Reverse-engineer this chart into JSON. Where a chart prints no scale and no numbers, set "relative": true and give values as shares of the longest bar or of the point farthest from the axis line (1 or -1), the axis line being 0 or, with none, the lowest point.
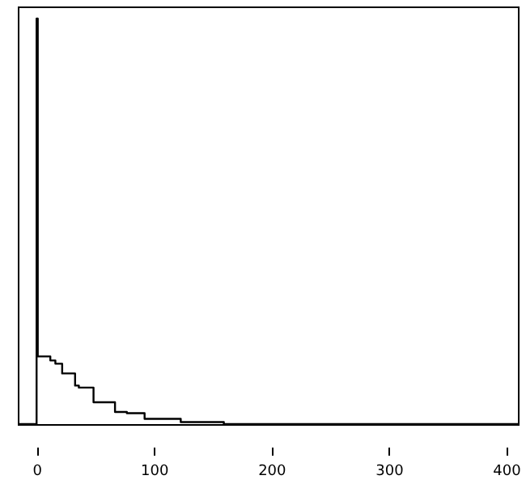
{
  "chart_data": {
    "type": "step",
    "relative": true,
    "color": "#000000",
    "x": [
      -16,
      0,
      1,
      11.7,
      16,
      21.8,
      32.8,
      36,
      48.5,
      66.8,
      76.9,
      92,
      122.8,
      159.5,
      410
    ],
    "values": [
      0,
      1,
      0.167,
      0.157,
      0.149,
      0.125,
      0.095,
      0.09,
      0.054,
      0.03,
      0.027,
      0.013,
      0.005,
      0,
      0
    ],
    "xlim": [
      -16,
      410
    ],
    "xticks": [
      0,
      100,
      200,
      300,
      400
    ],
    "grid": false
  }
}
